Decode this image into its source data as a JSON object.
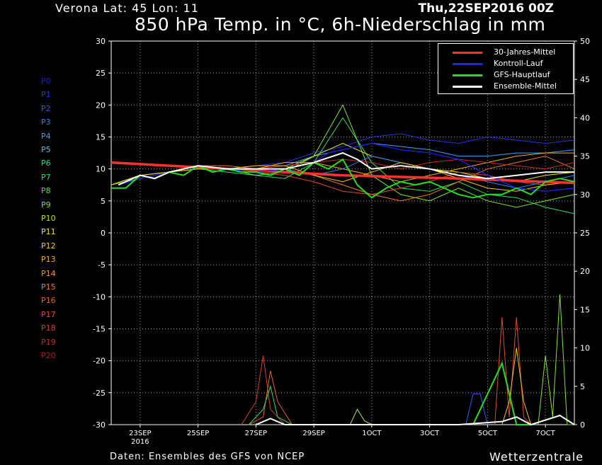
{
  "header": {
    "station": "Verona   Lat: 45 Lon: 11",
    "run": "Thu,22SEP2016 00Z",
    "title": "850 hPa Temp. in °C, 6h-Niederschlag in mm"
  },
  "footer": {
    "source": "Daten: Ensembles des GFS von NCEP",
    "brand": "Wetterzentrale"
  },
  "members": [
    {
      "label": "P0",
      "color": "#1f1fd8"
    },
    {
      "label": "P1",
      "color": "#2236e0"
    },
    {
      "label": "P2",
      "color": "#2a5ae8"
    },
    {
      "label": "P3",
      "color": "#2f7ff0"
    },
    {
      "label": "P4",
      "color": "#3aa4f4"
    },
    {
      "label": "P5",
      "color": "#3cc4e8"
    },
    {
      "label": "P6",
      "color": "#28d890"
    },
    {
      "label": "P7",
      "color": "#28e060"
    },
    {
      "label": "P8",
      "color": "#3ce838"
    },
    {
      "label": "P9",
      "color": "#80e820"
    },
    {
      "label": "P10",
      "color": "#b8e818"
    },
    {
      "label": "P11",
      "color": "#f0e818"
    },
    {
      "label": "P12",
      "color": "#f8c818"
    },
    {
      "label": "P13",
      "color": "#f8a820"
    },
    {
      "label": "P14",
      "color": "#f89020"
    },
    {
      "label": "P15",
      "color": "#f07828"
    },
    {
      "label": "P16",
      "color": "#e86028"
    },
    {
      "label": "P17",
      "color": "#e04828"
    },
    {
      "label": "P18",
      "color": "#d83828"
    },
    {
      "label": "P19",
      "color": "#c82820"
    },
    {
      "label": "P20",
      "color": "#b81818"
    }
  ],
  "legend": [
    {
      "label": "30-Jahres-Mittel",
      "color": "#ff3030"
    },
    {
      "label": "Kontroll-Lauf",
      "color": "#2020ff"
    },
    {
      "label": "GFS-Hauptlauf",
      "color": "#20e020"
    },
    {
      "label": "Ensemble-Mittel",
      "color": "#ffffff"
    }
  ],
  "chart_data": {
    "type": "line",
    "x_ticks": [
      "23SEP\n2016",
      "25SEP",
      "27SEP",
      "29SEP",
      "1OCT",
      "3OCT",
      "5OCT",
      "7OCT"
    ],
    "x_range_days": [
      0,
      16
    ],
    "y_left": {
      "min": -30,
      "max": 30,
      "step": 5,
      "label": "850 hPa Temp. (°C)"
    },
    "y_right": {
      "min": 0,
      "max": 50,
      "step": 5,
      "label": "6h-Niederschlag (mm)"
    },
    "grid": true,
    "legend_position": "top-right",
    "temperature_series": [
      {
        "name": "30-Jahres-Mittel",
        "color": "#ff3030",
        "width": 3.5,
        "x": [
          0,
          4,
          8,
          12,
          16
        ],
        "y": [
          11,
          10,
          9,
          8.5,
          7.8
        ]
      },
      {
        "name": "Kontroll-Lauf",
        "color": "#2020ff",
        "width": 1.2,
        "x": [
          0.25,
          1,
          2,
          3,
          4,
          5,
          6,
          7,
          7.5,
          8,
          9,
          10,
          11,
          12,
          13,
          14,
          15,
          16
        ],
        "y": [
          7.5,
          8.5,
          9.5,
          10.5,
          10,
          9.5,
          10,
          11,
          12.5,
          13,
          14,
          13,
          12.5,
          11.5,
          9,
          7,
          6.5,
          7
        ]
      },
      {
        "name": "GFS-Hauptlauf",
        "color": "#20e020",
        "width": 2,
        "x": [
          0,
          0.5,
          1,
          1.5,
          2,
          2.5,
          3,
          3.5,
          4,
          4.5,
          5,
          5.5,
          6,
          6.5,
          7,
          7.5,
          8,
          8.5,
          9,
          9.5,
          10,
          10.5,
          11,
          11.5,
          12,
          12.5,
          13,
          13.5,
          14,
          14.5,
          15,
          15.5,
          16
        ],
        "y": [
          7,
          7,
          9,
          8.5,
          9.5,
          9,
          10.5,
          9.5,
          10,
          9.5,
          9.5,
          9,
          10,
          9,
          11,
          10,
          11.5,
          7.5,
          5.5,
          7,
          8,
          7.5,
          8,
          7,
          6,
          5.5,
          6,
          6,
          7,
          6,
          8,
          8.5,
          8
        ]
      },
      {
        "name": "Ensemble-Mittel",
        "color": "#ffffff",
        "width": 2,
        "x": [
          0.25,
          1,
          1.5,
          2,
          3,
          4,
          5,
          6,
          7,
          8,
          8.5,
          9,
          10,
          11,
          12,
          13,
          14,
          15,
          16
        ],
        "y": [
          7.5,
          9,
          8.5,
          9.5,
          10.5,
          10,
          10,
          10,
          11,
          12.5,
          11.5,
          10,
          10.5,
          10,
          9,
          8.5,
          9,
          9.5,
          9.5
        ]
      }
    ],
    "member_series_temp": [
      {
        "member": "P1",
        "y": [
          7.5,
          9,
          9.5,
          10.5,
          10,
          10.5,
          11,
          12.5,
          13.5,
          15,
          15.5,
          14.5,
          14,
          15,
          14.5,
          14,
          14.5
        ]
      },
      {
        "member": "P4",
        "y": [
          7.5,
          9,
          9.5,
          10.5,
          10,
          10,
          10.5,
          12,
          13,
          14,
          13.5,
          13,
          12,
          12,
          12.5,
          12.5,
          13
        ]
      },
      {
        "member": "P7",
        "y": [
          7.5,
          8.5,
          9.5,
          10,
          9.5,
          9,
          8.5,
          11,
          18,
          11,
          7,
          6.5,
          8,
          6,
          5.5,
          4,
          3
        ]
      },
      {
        "member": "P9",
        "y": [
          7.5,
          9,
          9.5,
          10,
          10,
          9,
          9.5,
          12,
          20,
          9,
          6,
          5,
          7,
          5,
          4,
          5,
          6
        ]
      },
      {
        "member": "P11",
        "y": [
          7.5,
          9,
          9.5,
          10.5,
          10,
          10,
          10,
          12,
          14,
          12,
          11,
          10,
          9.5,
          8.5,
          8,
          9,
          9.5
        ]
      },
      {
        "member": "P13",
        "y": [
          7.5,
          9,
          9.5,
          10.5,
          10,
          10,
          11,
          11,
          10,
          9,
          8,
          9,
          10,
          11,
          12,
          12.5,
          12.5
        ]
      },
      {
        "member": "P15",
        "y": [
          7.5,
          9,
          9.5,
          10.5,
          10.5,
          10,
          10,
          9,
          7.5,
          6,
          5,
          6,
          8,
          10,
          11,
          12,
          10
        ]
      },
      {
        "member": "P17",
        "y": [
          7.5,
          9,
          9.5,
          10,
          10,
          9.5,
          9,
          8,
          6.5,
          6,
          7,
          8,
          9.5,
          9,
          8,
          7.5,
          8
        ]
      },
      {
        "member": "P19",
        "y": [
          7.5,
          9,
          9.5,
          10.5,
          10,
          10,
          10.5,
          11,
          11.5,
          11,
          10,
          11,
          11.5,
          11,
          10.5,
          10,
          11
        ]
      },
      {
        "member": "P3",
        "y": [
          7.5,
          9,
          9.5,
          10.5,
          10,
          9.5,
          10,
          9,
          10,
          12,
          11,
          10,
          9,
          8,
          7,
          8,
          9
        ]
      },
      {
        "member": "P12",
        "y": [
          7.5,
          9,
          9.5,
          10,
          10,
          10.5,
          10.5,
          9,
          8,
          9.5,
          11,
          10,
          8.5,
          7,
          6.5,
          7.5,
          8
        ]
      }
    ],
    "member_series_precip_mm": [
      {
        "member": "P18",
        "x": [
          4.5,
          5,
          5.25,
          5.5,
          6
        ],
        "y": [
          0,
          3,
          9,
          2,
          0
        ]
      },
      {
        "member": "P16",
        "x": [
          4.75,
          5.25,
          5.5,
          5.75,
          6.25
        ],
        "y": [
          0,
          1,
          7,
          3,
          0
        ]
      },
      {
        "member": "P7",
        "x": [
          4.75,
          5.25,
          5.5,
          5.75,
          6.25
        ],
        "y": [
          0,
          2,
          5,
          1,
          0
        ]
      },
      {
        "member": "P10",
        "x": [
          8.25,
          8.5,
          8.75,
          9
        ],
        "y": [
          0,
          2,
          0.5,
          0
        ]
      },
      {
        "member": "P2",
        "x": [
          12.25,
          12.5,
          12.75,
          13
        ],
        "y": [
          0,
          4,
          4,
          0
        ]
      },
      {
        "member": "P17",
        "x": [
          13.25,
          13.5,
          13.75,
          14,
          14.25,
          14.5
        ],
        "y": [
          0,
          14,
          1,
          14,
          1,
          0
        ]
      },
      {
        "member": "P12",
        "x": [
          13.5,
          13.75,
          14,
          14.25,
          14.5
        ],
        "y": [
          0,
          3,
          10,
          3,
          0
        ]
      },
      {
        "member": "GFS-Hauptlauf",
        "x": [
          12.5,
          13,
          13.5,
          14,
          14.25,
          14.5
        ],
        "y": [
          0,
          4,
          8,
          0,
          0,
          0
        ]
      },
      {
        "member": "P9",
        "x": [
          14.75,
          15,
          15.25,
          15.5,
          15.75,
          16
        ],
        "y": [
          0,
          9,
          1,
          17,
          0,
          0
        ]
      },
      {
        "member": "Ensemble-Mittel",
        "x": [
          5,
          5.5,
          6,
          12,
          13.5,
          14,
          14.5,
          15.5,
          16
        ],
        "y": [
          0,
          0.8,
          0,
          0,
          0.4,
          1,
          0,
          1.2,
          0
        ]
      }
    ]
  }
}
